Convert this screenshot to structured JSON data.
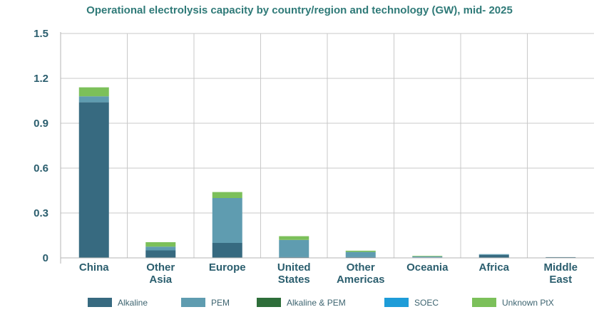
{
  "chart_data": {
    "type": "bar",
    "stacked": true,
    "title": "Operational electrolysis capacity by country/region and technology (GW), mid- 2025",
    "xlabel": "",
    "ylabel": "",
    "ylim": [
      0,
      1.5
    ],
    "yticks": [
      "0",
      "0.3",
      "0.6",
      "0.9",
      "1.2",
      "1.5"
    ],
    "ytick_values": [
      0,
      0.3,
      0.6,
      0.9,
      1.2,
      1.5
    ],
    "grid": true,
    "legend_position": "bottom",
    "categories": [
      [
        "China"
      ],
      [
        "Other",
        "Asia"
      ],
      [
        "Europe"
      ],
      [
        "United",
        "States"
      ],
      [
        "Other",
        "Americas"
      ],
      [
        "Oceania"
      ],
      [
        "Africa"
      ],
      [
        "Middle",
        "East"
      ]
    ],
    "series": [
      {
        "name": "Alkaline",
        "color": "#376a80",
        "values": [
          1.04,
          0.05,
          0.1,
          0.005,
          0.005,
          0.003,
          0.02,
          0.005
        ]
      },
      {
        "name": "PEM",
        "color": "#5f9cb0",
        "values": [
          0.04,
          0.025,
          0.3,
          0.115,
          0.035,
          0.007,
          0.005,
          0.0
        ]
      },
      {
        "name": "Alkaline & PEM",
        "color": "#2e6e3a",
        "values": [
          0,
          0,
          0,
          0,
          0,
          0,
          0,
          0
        ]
      },
      {
        "name": "SOEC",
        "color": "#1e9cd8",
        "values": [
          0,
          0,
          0,
          0,
          0,
          0,
          0,
          0
        ]
      },
      {
        "name": "Unknown PtX",
        "color": "#7cc05a",
        "values": [
          0.06,
          0.03,
          0.04,
          0.025,
          0.008,
          0.003,
          0.0,
          0.0
        ]
      }
    ]
  }
}
